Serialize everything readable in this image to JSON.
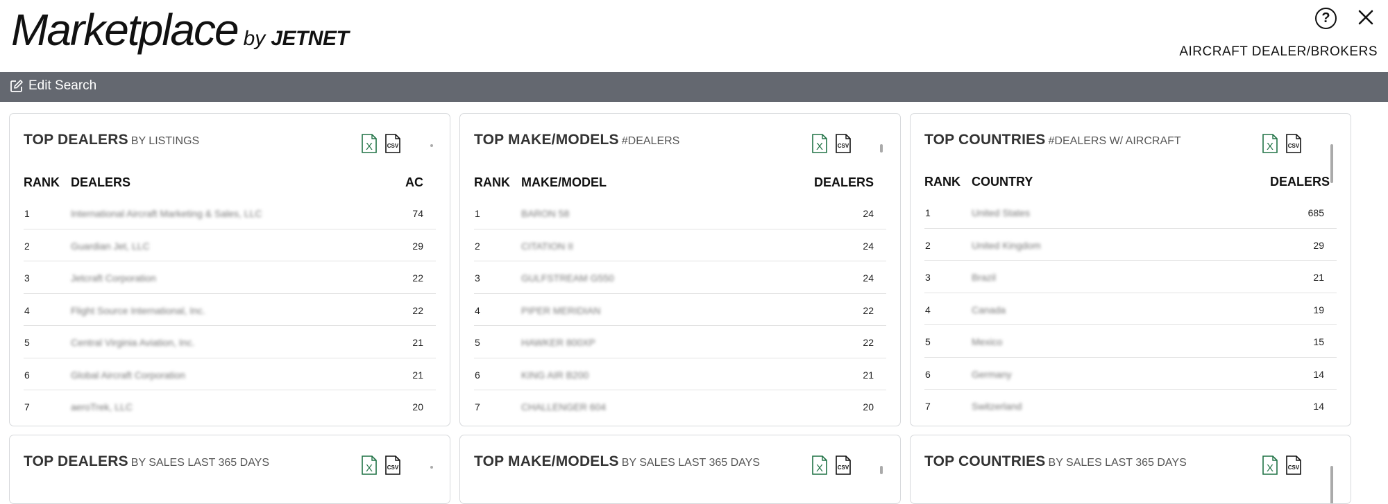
{
  "header": {
    "logo_main": "Marketplace",
    "logo_by": "by",
    "logo_brand": "JETNET",
    "help_label": "?",
    "page_context": "AIRCRAFT DEALER/BROKERS"
  },
  "toolbar": {
    "edit_search_label": "Edit Search"
  },
  "icons": {
    "help": "question-circle-icon",
    "close": "close-icon",
    "edit": "edit-pencil-icon",
    "excel": "excel-file-icon",
    "csv": "csv-file-icon"
  },
  "colors": {
    "toolbar_bg": "#646870",
    "excel_green": "#217346"
  },
  "export_labels": {
    "excel": "X",
    "csv": "CSV"
  },
  "cards": [
    {
      "title": "TOP DEALERS",
      "subtitle": "BY LISTINGS",
      "columns": [
        "RANK",
        "DEALERS",
        "AC"
      ],
      "rows": [
        {
          "rank": "1",
          "name": "International Aircraft Marketing & Sales, LLC",
          "value": "74"
        },
        {
          "rank": "2",
          "name": "Guardian Jet, LLC",
          "value": "29"
        },
        {
          "rank": "3",
          "name": "Jetcraft Corporation",
          "value": "22"
        },
        {
          "rank": "4",
          "name": "Flight Source International, Inc.",
          "value": "22"
        },
        {
          "rank": "5",
          "name": "Central Virginia Aviation, Inc.",
          "value": "21"
        },
        {
          "rank": "6",
          "name": "Global Aircraft Corporation",
          "value": "21"
        },
        {
          "rank": "7",
          "name": "aeroTrek, LLC",
          "value": "20"
        }
      ]
    },
    {
      "title": "TOP MAKE/MODELS",
      "subtitle": "#DEALERS",
      "columns": [
        "RANK",
        "MAKE/MODEL",
        "DEALERS"
      ],
      "rows": [
        {
          "rank": "1",
          "name": "BARON 58",
          "value": "24"
        },
        {
          "rank": "2",
          "name": "CITATION II",
          "value": "24"
        },
        {
          "rank": "3",
          "name": "GULFSTREAM G550",
          "value": "24"
        },
        {
          "rank": "4",
          "name": "PIPER MERIDIAN",
          "value": "22"
        },
        {
          "rank": "5",
          "name": "HAWKER 800XP",
          "value": "22"
        },
        {
          "rank": "6",
          "name": "KING AIR B200",
          "value": "21"
        },
        {
          "rank": "7",
          "name": "CHALLENGER 604",
          "value": "20"
        }
      ]
    },
    {
      "title": "TOP COUNTRIES",
      "subtitle": "#DEALERS W/ AIRCRAFT",
      "columns": [
        "RANK",
        "COUNTRY",
        "DEALERS"
      ],
      "rows": [
        {
          "rank": "1",
          "name": "United States",
          "value": "685"
        },
        {
          "rank": "2",
          "name": "United Kingdom",
          "value": "29"
        },
        {
          "rank": "3",
          "name": "Brazil",
          "value": "21"
        },
        {
          "rank": "4",
          "name": "Canada",
          "value": "19"
        },
        {
          "rank": "5",
          "name": "Mexico",
          "value": "15"
        },
        {
          "rank": "6",
          "name": "Germany",
          "value": "14"
        },
        {
          "rank": "7",
          "name": "Switzerland",
          "value": "14"
        }
      ]
    }
  ],
  "cards_row2": [
    {
      "title": "TOP DEALERS",
      "subtitle": "BY SALES LAST 365 DAYS"
    },
    {
      "title": "TOP MAKE/MODELS",
      "subtitle": "BY SALES LAST 365 DAYS"
    },
    {
      "title": "TOP COUNTRIES",
      "subtitle": "BY SALES LAST 365 DAYS"
    }
  ]
}
